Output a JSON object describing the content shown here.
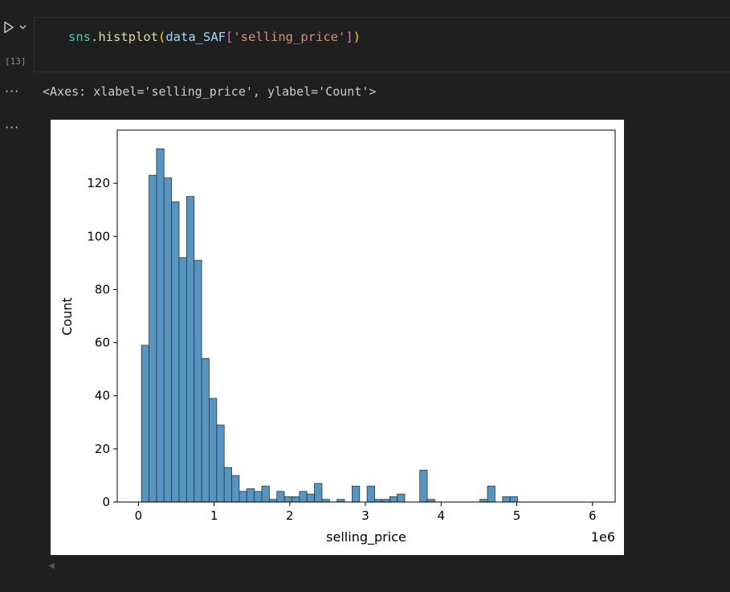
{
  "cell": {
    "execution_count": "[13]",
    "code": {
      "module": "sns",
      "dot": ".",
      "func": "histplot",
      "open_paren": "(",
      "var": "data_SAF",
      "open_bracket": "[",
      "arg": "'selling_price'",
      "close_bracket": "]",
      "close_paren": ")"
    }
  },
  "output": {
    "more_label": "···",
    "repr_text": "<Axes: xlabel='selling_price', ylabel='Count'>"
  },
  "chart_data": {
    "type": "bar",
    "subtype": "histogram",
    "xlabel": "selling_price",
    "ylabel": "Count",
    "x_offset_text": "1e6",
    "xlim": [
      -0.28,
      6.3
    ],
    "ylim": [
      0,
      140
    ],
    "x_ticks": [
      0,
      1,
      2,
      3,
      4,
      5,
      6
    ],
    "x_tick_labels": [
      "0",
      "1",
      "2",
      "3",
      "4",
      "5",
      "6"
    ],
    "y_ticks": [
      0,
      20,
      40,
      60,
      80,
      100,
      120
    ],
    "y_tick_labels": [
      "0",
      "20",
      "40",
      "60",
      "80",
      "100",
      "120"
    ],
    "bin_start": 0.04,
    "bin_width": 0.0994,
    "values": [
      59,
      123,
      133,
      122,
      113,
      92,
      115,
      91,
      54,
      39,
      29,
      13,
      10,
      4,
      5,
      4,
      6,
      1,
      4,
      2,
      2,
      4,
      3,
      7,
      1,
      0,
      1,
      0,
      6,
      0,
      6,
      1,
      1,
      2,
      3,
      0,
      0,
      12,
      1,
      0,
      0,
      0,
      0,
      0,
      0,
      1,
      6,
      0,
      2,
      2,
      0,
      0,
      0,
      0,
      0,
      0,
      0,
      0,
      0,
      0,
      0,
      0,
      0,
      0,
      0,
      0,
      0,
      0,
      0,
      0,
      0,
      0,
      0,
      0,
      0,
      0,
      0,
      0,
      0,
      0,
      0,
      0,
      0,
      0,
      0,
      0,
      0,
      0,
      0,
      0,
      0,
      0,
      0,
      0,
      0,
      0,
      0,
      0,
      0,
      0,
      0,
      0,
      0
    ],
    "bar_color": "#4c8fbf",
    "edge_color": "#333333",
    "grid": false
  }
}
